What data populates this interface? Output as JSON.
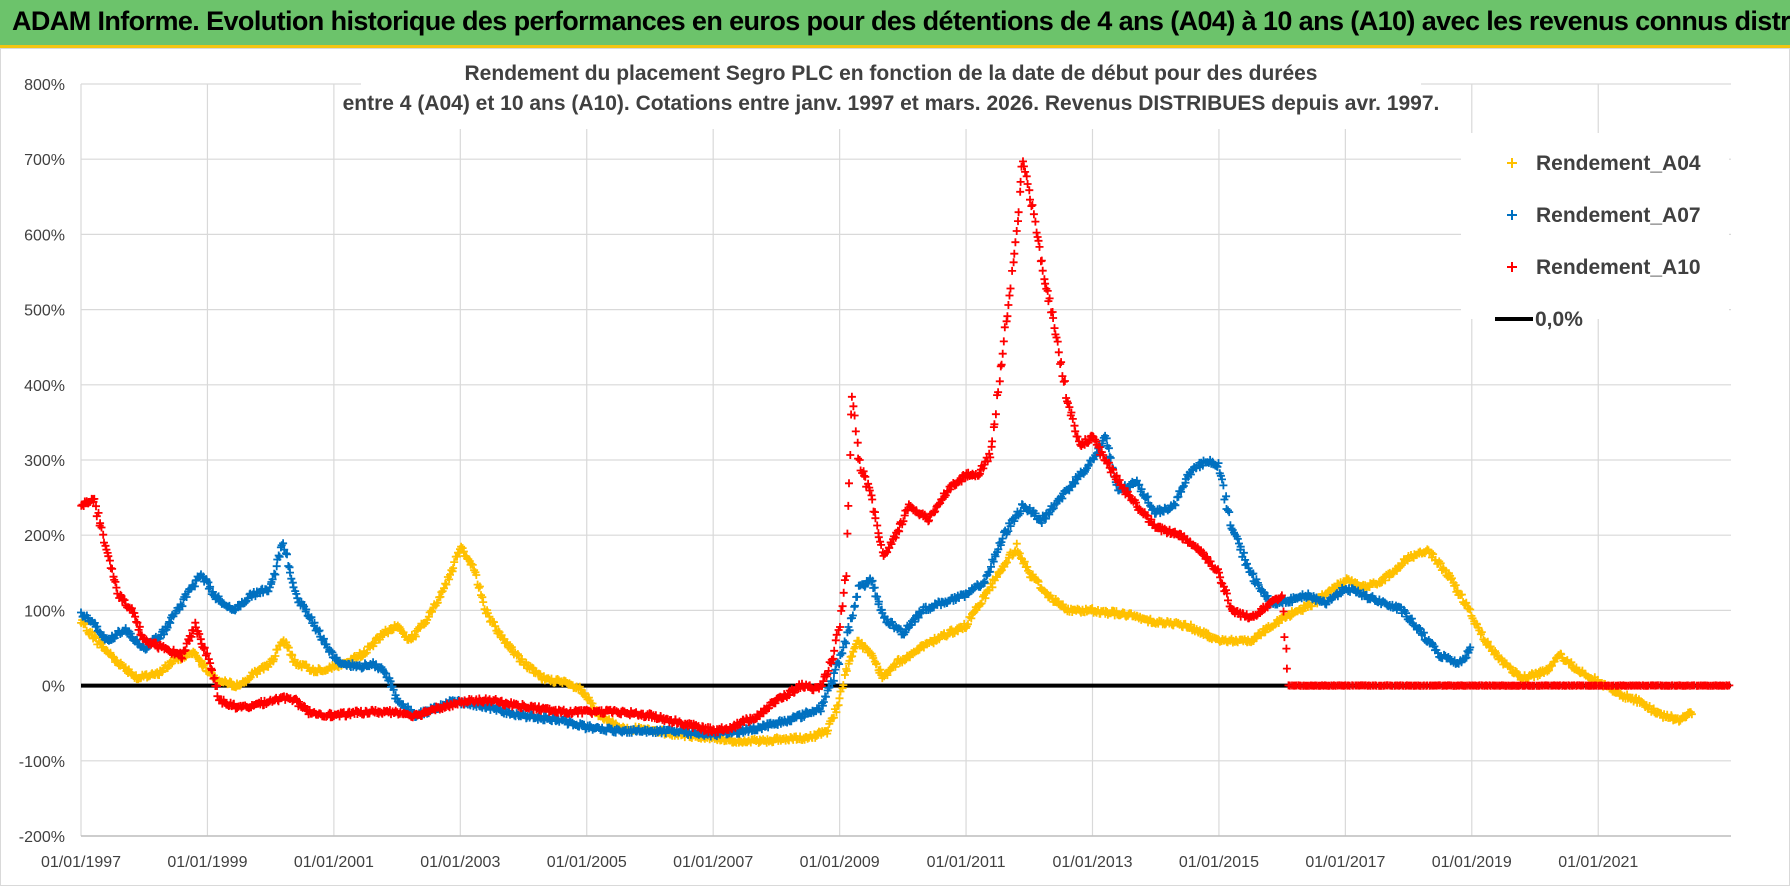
{
  "banner": {
    "title": "ADAM Informe. Evolution historique des performances en euros pour des détentions de 4 ans (A04) à 10 ans (A10) avec les revenus connus distribués"
  },
  "colors": {
    "banner_bg": "#6cc36b",
    "banner_border": "#f2c511",
    "A04": "#ffc000",
    "A07": "#0070c0",
    "A10": "#ff0000",
    "zero": "#000000",
    "grid": "#d9d9d9"
  },
  "chart_data": {
    "type": "scatter",
    "title_line1": "Rendement du placement Segro PLC en fonction de la date de début pour des durées",
    "title_line2": "entre 4 (A04) et 10 ans (A10). Cotations entre janv. 1997 et mars. 2026. Revenus DISTRIBUES depuis avr. 1997.",
    "x_type": "date",
    "x_range": [
      1997.0,
      2023.1
    ],
    "x_ticks": [
      "01/01/1997",
      "01/01/1999",
      "01/01/2001",
      "01/01/2003",
      "01/01/2005",
      "01/01/2007",
      "01/01/2009",
      "01/01/2011",
      "01/01/2013",
      "01/01/2015",
      "01/01/2017",
      "01/01/2019",
      "01/01/2021"
    ],
    "y_range": [
      -200,
      800
    ],
    "y_ticks": [
      "-200%",
      "-100%",
      "0%",
      "100%",
      "200%",
      "300%",
      "400%",
      "500%",
      "600%",
      "700%",
      "800%"
    ],
    "legend_position": "top-right",
    "series": [
      {
        "name": "Rendement_A04",
        "color": "#ffc000",
        "marker": "+",
        "points": [
          [
            1997.0,
            85
          ],
          [
            1997.3,
            55
          ],
          [
            1997.6,
            30
          ],
          [
            1997.9,
            10
          ],
          [
            1998.2,
            15
          ],
          [
            1998.5,
            35
          ],
          [
            1998.8,
            45
          ],
          [
            1999.0,
            20
          ],
          [
            1999.2,
            5
          ],
          [
            1999.5,
            0
          ],
          [
            1999.8,
            20
          ],
          [
            2000.0,
            30
          ],
          [
            2000.2,
            60
          ],
          [
            2000.4,
            30
          ],
          [
            2000.7,
            20
          ],
          [
            2001.0,
            25
          ],
          [
            2001.2,
            30
          ],
          [
            2001.5,
            45
          ],
          [
            2001.8,
            70
          ],
          [
            2002.0,
            80
          ],
          [
            2002.2,
            60
          ],
          [
            2002.5,
            90
          ],
          [
            2002.8,
            140
          ],
          [
            2003.0,
            185
          ],
          [
            2003.2,
            160
          ],
          [
            2003.4,
            100
          ],
          [
            2003.6,
            70
          ],
          [
            2003.8,
            50
          ],
          [
            2004.0,
            30
          ],
          [
            2004.3,
            10
          ],
          [
            2004.6,
            5
          ],
          [
            2004.9,
            -5
          ],
          [
            2005.2,
            -40
          ],
          [
            2005.5,
            -55
          ],
          [
            2006.0,
            -60
          ],
          [
            2006.5,
            -65
          ],
          [
            2007.0,
            -70
          ],
          [
            2007.5,
            -75
          ],
          [
            2008.0,
            -72
          ],
          [
            2008.5,
            -70
          ],
          [
            2008.8,
            -60
          ],
          [
            2009.0,
            -20
          ],
          [
            2009.1,
            20
          ],
          [
            2009.3,
            60
          ],
          [
            2009.5,
            40
          ],
          [
            2009.7,
            10
          ],
          [
            2009.9,
            30
          ],
          [
            2010.3,
            50
          ],
          [
            2010.6,
            65
          ],
          [
            2011.0,
            80
          ],
          [
            2011.3,
            120
          ],
          [
            2011.6,
            160
          ],
          [
            2011.8,
            185
          ],
          [
            2012.0,
            150
          ],
          [
            2012.3,
            120
          ],
          [
            2012.6,
            100
          ],
          [
            2013.0,
            100
          ],
          [
            2013.5,
            95
          ],
          [
            2014.0,
            85
          ],
          [
            2014.5,
            80
          ],
          [
            2015.0,
            60
          ],
          [
            2015.5,
            60
          ],
          [
            2016.0,
            90
          ],
          [
            2016.5,
            110
          ],
          [
            2017.0,
            140
          ],
          [
            2017.3,
            130
          ],
          [
            2017.6,
            140
          ],
          [
            2018.0,
            170
          ],
          [
            2018.3,
            180
          ],
          [
            2018.6,
            150
          ],
          [
            2018.9,
            110
          ],
          [
            2019.2,
            60
          ],
          [
            2019.5,
            30
          ],
          [
            2019.8,
            10
          ],
          [
            2020.2,
            20
          ],
          [
            2020.4,
            40
          ],
          [
            2020.7,
            20
          ],
          [
            2021.0,
            5
          ],
          [
            2021.3,
            -10
          ],
          [
            2021.6,
            -20
          ],
          [
            2022.0,
            -40
          ],
          [
            2022.3,
            -45
          ],
          [
            2022.5,
            -35
          ]
        ]
      },
      {
        "name": "Rendement_A07",
        "color": "#0070c0",
        "marker": "+",
        "points": [
          [
            1997.0,
            95
          ],
          [
            1997.2,
            85
          ],
          [
            1997.4,
            60
          ],
          [
            1997.7,
            75
          ],
          [
            1998.0,
            50
          ],
          [
            1998.3,
            70
          ],
          [
            1998.6,
            110
          ],
          [
            1998.9,
            150
          ],
          [
            1999.1,
            120
          ],
          [
            1999.4,
            100
          ],
          [
            1999.7,
            120
          ],
          [
            2000.0,
            130
          ],
          [
            2000.2,
            190
          ],
          [
            2000.4,
            120
          ],
          [
            2000.7,
            80
          ],
          [
            2000.9,
            50
          ],
          [
            2001.1,
            30
          ],
          [
            2001.4,
            25
          ],
          [
            2001.6,
            30
          ],
          [
            2001.8,
            20
          ],
          [
            2002.0,
            -20
          ],
          [
            2002.3,
            -40
          ],
          [
            2002.6,
            -30
          ],
          [
            2002.9,
            -20
          ],
          [
            2003.2,
            -25
          ],
          [
            2003.5,
            -30
          ],
          [
            2004.0,
            -40
          ],
          [
            2004.5,
            -45
          ],
          [
            2005.0,
            -55
          ],
          [
            2005.5,
            -60
          ],
          [
            2006.0,
            -60
          ],
          [
            2006.5,
            -62
          ],
          [
            2007.0,
            -65
          ],
          [
            2007.5,
            -60
          ],
          [
            2008.0,
            -50
          ],
          [
            2008.4,
            -40
          ],
          [
            2008.7,
            -30
          ],
          [
            2008.9,
            10
          ],
          [
            2009.1,
            60
          ],
          [
            2009.3,
            130
          ],
          [
            2009.5,
            140
          ],
          [
            2009.7,
            90
          ],
          [
            2010.0,
            70
          ],
          [
            2010.3,
            100
          ],
          [
            2010.6,
            110
          ],
          [
            2011.0,
            120
          ],
          [
            2011.3,
            140
          ],
          [
            2011.6,
            200
          ],
          [
            2011.9,
            240
          ],
          [
            2012.2,
            220
          ],
          [
            2012.5,
            250
          ],
          [
            2012.8,
            280
          ],
          [
            2013.0,
            300
          ],
          [
            2013.2,
            330
          ],
          [
            2013.4,
            260
          ],
          [
            2013.7,
            270
          ],
          [
            2014.0,
            230
          ],
          [
            2014.3,
            240
          ],
          [
            2014.5,
            280
          ],
          [
            2014.8,
            300
          ],
          [
            2015.0,
            290
          ],
          [
            2015.2,
            210
          ],
          [
            2015.5,
            150
          ],
          [
            2015.8,
            110
          ],
          [
            2016.0,
            110
          ],
          [
            2016.4,
            120
          ],
          [
            2016.7,
            110
          ],
          [
            2017.0,
            130
          ],
          [
            2017.3,
            120
          ],
          [
            2017.6,
            110
          ],
          [
            2017.9,
            100
          ],
          [
            2018.2,
            70
          ],
          [
            2018.5,
            40
          ],
          [
            2018.8,
            30
          ],
          [
            2019.0,
            50
          ]
        ]
      },
      {
        "name": "Rendement_A10",
        "color": "#ff0000",
        "marker": "+",
        "points": [
          [
            1997.0,
            240
          ],
          [
            1997.2,
            250
          ],
          [
            1997.4,
            180
          ],
          [
            1997.6,
            120
          ],
          [
            1997.8,
            100
          ],
          [
            1998.0,
            60
          ],
          [
            1998.3,
            50
          ],
          [
            1998.6,
            40
          ],
          [
            1998.8,
            80
          ],
          [
            1999.0,
            40
          ],
          [
            1999.2,
            -20
          ],
          [
            1999.5,
            -30
          ],
          [
            1999.8,
            -25
          ],
          [
            2000.0,
            -20
          ],
          [
            2000.3,
            -15
          ],
          [
            2000.6,
            -35
          ],
          [
            2001.0,
            -40
          ],
          [
            2001.5,
            -35
          ],
          [
            2002.0,
            -35
          ],
          [
            2002.3,
            -40
          ],
          [
            2002.6,
            -30
          ],
          [
            2002.9,
            -25
          ],
          [
            2003.2,
            -20
          ],
          [
            2003.5,
            -20
          ],
          [
            2003.8,
            -25
          ],
          [
            2004.2,
            -30
          ],
          [
            2004.6,
            -35
          ],
          [
            2005.0,
            -35
          ],
          [
            2005.5,
            -35
          ],
          [
            2006.0,
            -40
          ],
          [
            2006.5,
            -50
          ],
          [
            2007.0,
            -60
          ],
          [
            2007.3,
            -55
          ],
          [
            2007.7,
            -40
          ],
          [
            2008.0,
            -20
          ],
          [
            2008.4,
            0
          ],
          [
            2008.7,
            -5
          ],
          [
            2008.9,
            40
          ],
          [
            2009.0,
            80
          ],
          [
            2009.1,
            150
          ],
          [
            2009.2,
            390
          ],
          [
            2009.3,
            300
          ],
          [
            2009.5,
            250
          ],
          [
            2009.7,
            170
          ],
          [
            2009.9,
            200
          ],
          [
            2010.1,
            240
          ],
          [
            2010.4,
            220
          ],
          [
            2010.7,
            260
          ],
          [
            2011.0,
            280
          ],
          [
            2011.2,
            280
          ],
          [
            2011.4,
            310
          ],
          [
            2011.6,
            460
          ],
          [
            2011.8,
            600
          ],
          [
            2011.9,
            700
          ],
          [
            2012.0,
            660
          ],
          [
            2012.2,
            560
          ],
          [
            2012.4,
            480
          ],
          [
            2012.6,
            380
          ],
          [
            2012.8,
            320
          ],
          [
            2013.0,
            330
          ],
          [
            2013.2,
            300
          ],
          [
            2013.5,
            260
          ],
          [
            2013.8,
            230
          ],
          [
            2014.0,
            210
          ],
          [
            2014.4,
            200
          ],
          [
            2014.7,
            180
          ],
          [
            2015.0,
            150
          ],
          [
            2015.2,
            100
          ],
          [
            2015.5,
            90
          ],
          [
            2015.8,
            110
          ],
          [
            2016.0,
            120
          ],
          [
            2016.1,
            0
          ],
          [
            2017.0,
            0
          ],
          [
            2018.0,
            0
          ],
          [
            2019.0,
            0
          ],
          [
            2020.0,
            0
          ],
          [
            2021.0,
            0
          ],
          [
            2022.0,
            0
          ],
          [
            2023.1,
            0
          ]
        ]
      }
    ],
    "reference_line": {
      "name": "0,0%",
      "y": 0,
      "color": "#000000"
    },
    "legend": [
      {
        "label": "Rendement_A04",
        "color": "#ffc000",
        "type": "marker"
      },
      {
        "label": "Rendement_A07",
        "color": "#0070c0",
        "type": "marker"
      },
      {
        "label": "Rendement_A10",
        "color": "#ff0000",
        "type": "marker"
      },
      {
        "label": "0,0%",
        "color": "#000000",
        "type": "line"
      }
    ]
  }
}
